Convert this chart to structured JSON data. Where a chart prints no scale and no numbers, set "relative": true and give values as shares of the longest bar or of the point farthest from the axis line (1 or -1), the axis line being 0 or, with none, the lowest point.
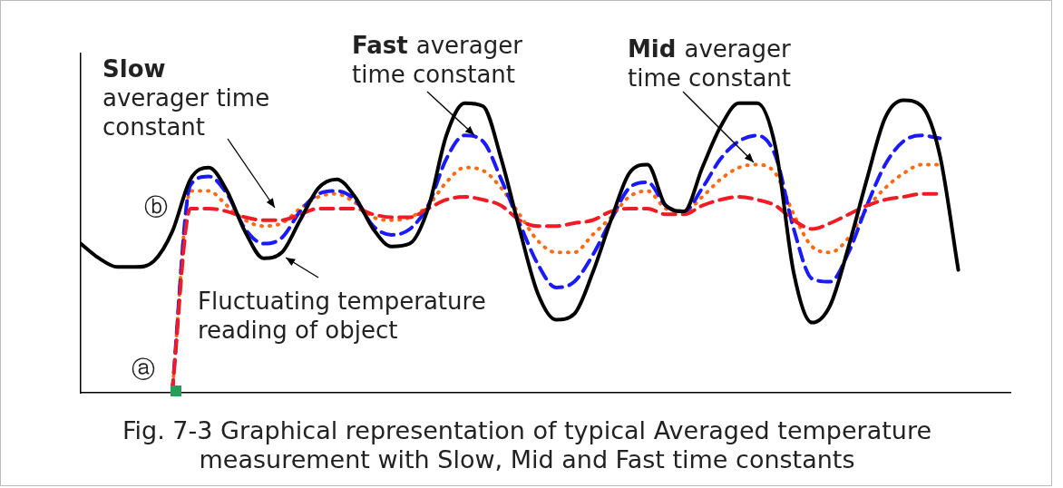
{
  "chart_data": {
    "type": "line",
    "relative": true,
    "marker": "none",
    "title": "Fig. 7-3  Graphical representation of typical Averaged temperature measurement with Slow, Mid and Fast time constants",
    "categories": [
      null,
      null,
      null,
      null,
      null,
      null,
      null,
      null,
      null,
      null,
      null,
      null,
      null,
      null,
      null,
      null,
      null,
      null,
      null,
      null,
      null,
      null,
      null,
      null,
      null,
      null,
      null,
      null,
      null,
      null,
      null,
      null,
      null,
      null,
      null,
      null,
      null,
      null,
      null,
      null,
      null,
      null,
      null,
      null,
      null,
      null,
      null,
      null,
      null
    ],
    "series": [
      {
        "name": "Fluctuating temperature reading of object",
        "color": "#000000",
        "line_style": "solid",
        "values": [
          0.51,
          0.46,
          0.43,
          0.43,
          0.45,
          0.55,
          0.73,
          0.77,
          0.69,
          0.55,
          0.46,
          0.48,
          0.59,
          0.7,
          0.73,
          0.67,
          0.56,
          0.5,
          0.51,
          0.63,
          0.88,
          0.99,
          0.98,
          0.8,
          0.56,
          0.34,
          0.25,
          0.27,
          0.41,
          0.59,
          0.75,
          0.78,
          0.64,
          0.62,
          0.77,
          0.91,
          0.99,
          0.99,
          0.84,
          0.41,
          0.24,
          0.3,
          0.5,
          0.73,
          0.94,
          1,
          0.98,
          0.81,
          0.42
        ]
      },
      {
        "name": "Slow averager time constant",
        "color": "#ee1c24",
        "line_style": "dashed",
        "values": [
          null,
          null,
          null,
          null,
          null,
          0,
          0.63,
          0.63,
          0.62,
          0.6,
          0.59,
          0.59,
          0.61,
          0.63,
          0.63,
          0.63,
          0.61,
          0.6,
          0.6,
          0.63,
          0.66,
          0.67,
          0.66,
          0.64,
          0.59,
          0.57,
          0.57,
          0.58,
          0.59,
          0.62,
          0.63,
          0.63,
          0.61,
          0.61,
          0.64,
          0.66,
          0.67,
          0.66,
          0.64,
          0.59,
          0.56,
          0.58,
          0.61,
          0.64,
          0.66,
          0.67,
          0.68,
          0.68,
          null
        ]
      },
      {
        "name": "Fast averager time constant",
        "color": "#1a1aff",
        "line_style": "dashed",
        "values": [
          null,
          null,
          null,
          null,
          null,
          0,
          0.71,
          0.74,
          0.68,
          0.56,
          0.51,
          0.53,
          0.62,
          0.68,
          0.69,
          0.66,
          0.57,
          0.54,
          0.56,
          0.64,
          0.8,
          0.88,
          0.86,
          0.73,
          0.58,
          0.44,
          0.36,
          0.38,
          0.47,
          0.59,
          0.7,
          0.72,
          0.64,
          0.62,
          0.7,
          0.8,
          0.86,
          0.88,
          0.81,
          0.56,
          0.39,
          0.38,
          0.48,
          0.64,
          0.78,
          0.86,
          0.88,
          0.87,
          null
        ]
      },
      {
        "name": "Mid averager time constant",
        "color": "#ff6a13",
        "line_style": "dotted",
        "values": [
          null,
          null,
          null,
          null,
          null,
          0,
          0.69,
          0.69,
          0.64,
          0.59,
          0.57,
          0.58,
          0.63,
          0.67,
          0.68,
          0.65,
          0.6,
          0.59,
          0.6,
          0.64,
          0.72,
          0.77,
          0.76,
          0.7,
          0.61,
          0.52,
          0.48,
          0.48,
          0.54,
          0.6,
          0.67,
          0.69,
          0.63,
          0.62,
          0.67,
          0.73,
          0.77,
          0.78,
          0.75,
          0.61,
          0.5,
          0.48,
          0.53,
          0.63,
          0.7,
          0.75,
          0.78,
          0.78,
          null
        ]
      }
    ],
    "annotations": [
      "ⓐ",
      "ⓑ"
    ]
  }
}
